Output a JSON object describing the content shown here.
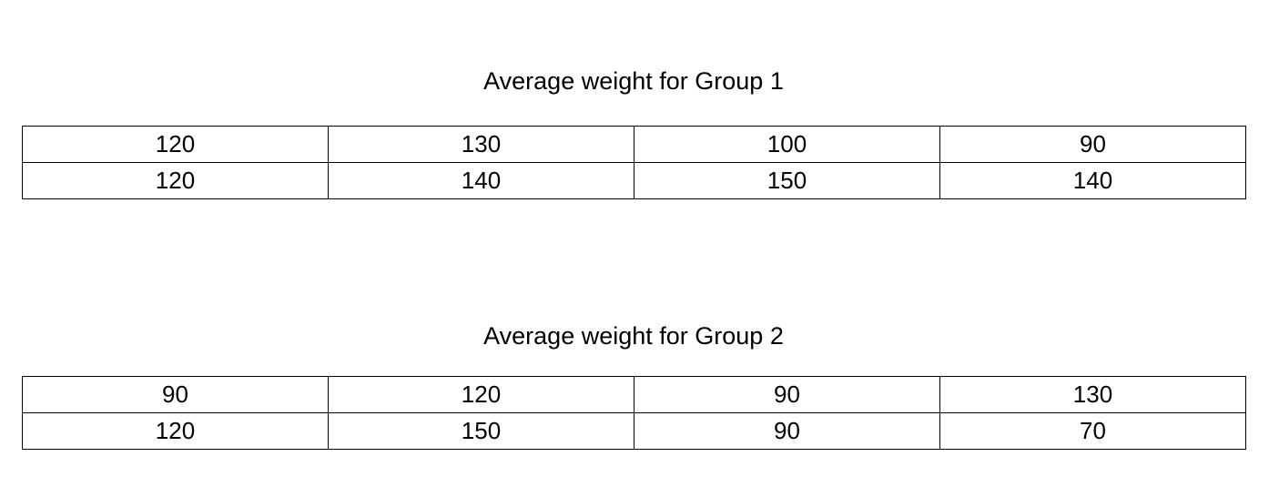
{
  "sections": [
    {
      "title": "Average weight for Group 1",
      "rows": [
        [
          120,
          130,
          100,
          90
        ],
        [
          120,
          140,
          150,
          140
        ]
      ]
    },
    {
      "title": "Average weight for Group 2",
      "rows": [
        [
          90,
          120,
          90,
          130
        ],
        [
          120,
          150,
          90,
          70
        ]
      ]
    }
  ]
}
